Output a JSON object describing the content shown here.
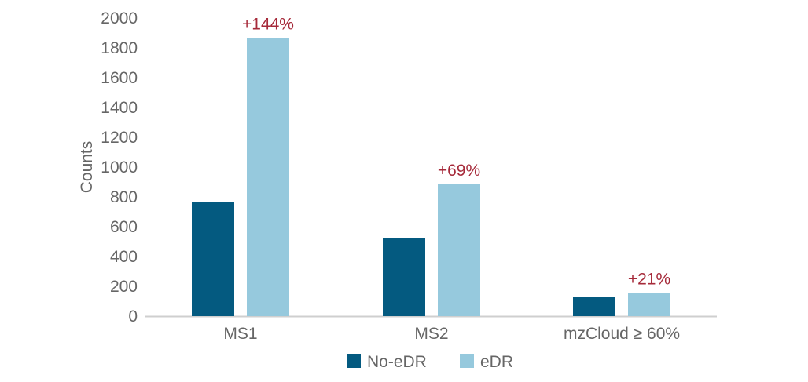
{
  "chart_data": {
    "type": "bar",
    "title": "",
    "xlabel": "",
    "ylabel": "Counts",
    "ylim": [
      0,
      2000
    ],
    "yticks": [
      0,
      200,
      400,
      600,
      800,
      1000,
      1200,
      1400,
      1600,
      1800,
      2000
    ],
    "grid": false,
    "legend_position": "bottom",
    "categories": [
      "MS1",
      "MS2",
      "mzCloud ≥ 60%"
    ],
    "series": [
      {
        "name": "No-eDR",
        "color": "#045a80",
        "values": [
          765,
          525,
          128
        ]
      },
      {
        "name": "eDR",
        "color": "#96c9dd",
        "values": [
          1865,
          885,
          155
        ]
      }
    ],
    "annotations": [
      "+144%",
      "+69%",
      "+21%"
    ],
    "annotation_color": "#a62a3a"
  }
}
